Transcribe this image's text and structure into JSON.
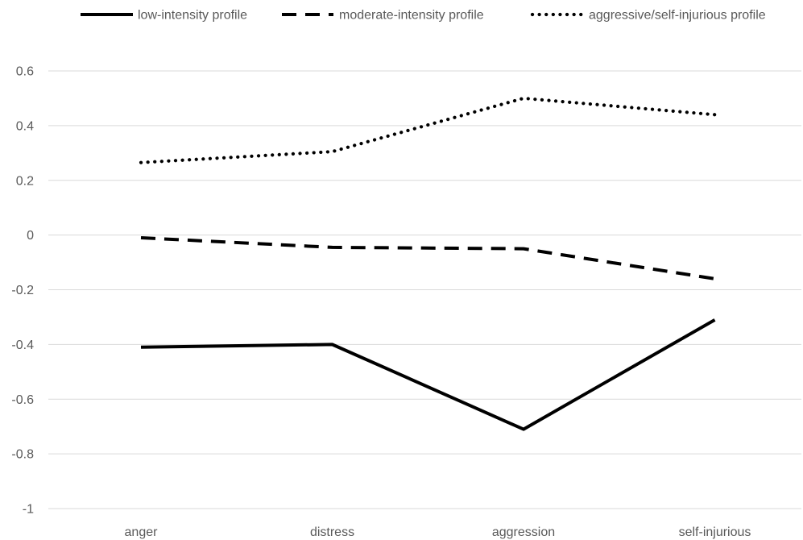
{
  "chart_data": {
    "type": "line",
    "title": "",
    "xlabel": "",
    "ylabel": "",
    "categories": [
      "anger",
      "distress",
      "aggression",
      "self-injurious"
    ],
    "ylim": [
      -1,
      0.6
    ],
    "yticks": [
      0.6,
      0.4,
      0.2,
      0,
      -0.2,
      -0.4,
      -0.6,
      -0.8,
      -1
    ],
    "ytick_labels": [
      "0.6",
      "0.4",
      "0.2",
      "0",
      "-0.2",
      "-0.4",
      "-0.6",
      "-0.8",
      "-1"
    ],
    "grid": true,
    "legend_position": "top",
    "series": [
      {
        "name": "low-intensity profile",
        "style": "solid",
        "color": "#000000",
        "values": [
          -0.41,
          -0.4,
          -0.71,
          -0.31
        ]
      },
      {
        "name": "moderate-intensity profile",
        "style": "dashed",
        "color": "#000000",
        "values": [
          -0.01,
          -0.045,
          -0.05,
          -0.16
        ]
      },
      {
        "name": "aggressive/self-injurious profile",
        "style": "dotted",
        "color": "#000000",
        "values": [
          0.265,
          0.305,
          0.5,
          0.44
        ]
      }
    ]
  }
}
